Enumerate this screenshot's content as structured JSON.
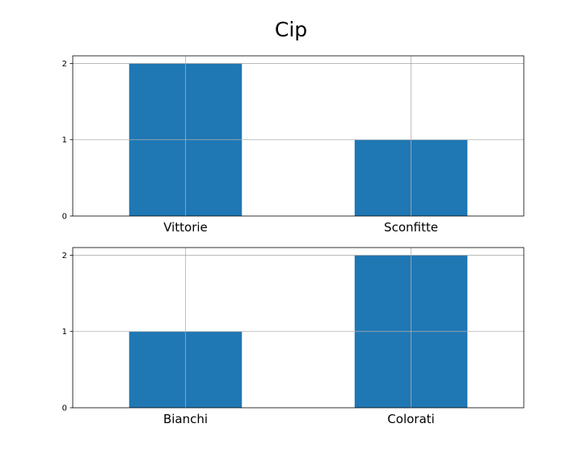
{
  "figure": {
    "title": "Cip"
  },
  "chart_data": [
    {
      "type": "bar",
      "categories": [
        "Vittorie",
        "Sconfitte"
      ],
      "values": [
        2,
        1
      ],
      "ylim": [
        0,
        2.1
      ],
      "yticks": [
        0,
        1,
        2
      ],
      "grid": true,
      "bar_color": "#1f77b4"
    },
    {
      "type": "bar",
      "categories": [
        "Bianchi",
        "Colorati"
      ],
      "values": [
        1,
        2
      ],
      "ylim": [
        0,
        2.1
      ],
      "yticks": [
        0,
        1,
        2
      ],
      "grid": true,
      "bar_color": "#1f77b4"
    }
  ]
}
